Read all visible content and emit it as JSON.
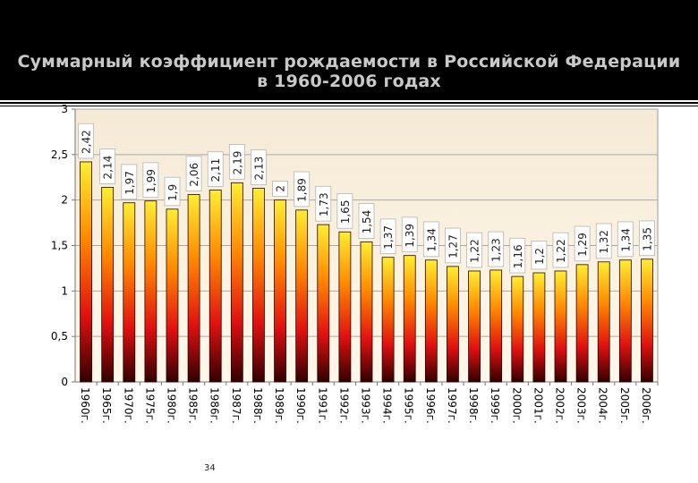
{
  "slide": {
    "title_line1": "Суммарный коэффициент рождаемости в Российской Федерации",
    "title_line2": "в 1960-2006 годах",
    "page_number": "34"
  },
  "chart_data": {
    "type": "bar",
    "title": "Суммарный коэффициент рождаемости в Российской Федерации в 1960-2006 годах",
    "categories": [
      "1960г.",
      "1965г.",
      "1970г.",
      "1975г.",
      "1980г.",
      "1985г.",
      "1986г.",
      "1987г.",
      "1988г.",
      "1989г.",
      "1990г.",
      "1991г.",
      "1992г.",
      "1993г.",
      "1994г.",
      "1995г.",
      "1996г.",
      "1997г.",
      "1998г.",
      "1999г.",
      "2000г.",
      "2001г.",
      "2002г.",
      "2003г.",
      "2004г.",
      "2005г.",
      "2006г."
    ],
    "values": [
      2.42,
      2.14,
      1.97,
      1.99,
      1.9,
      2.06,
      2.11,
      2.19,
      2.13,
      2,
      1.89,
      1.73,
      1.65,
      1.54,
      1.37,
      1.39,
      1.34,
      1.27,
      1.22,
      1.23,
      1.16,
      1.2,
      1.22,
      1.29,
      1.32,
      1.34,
      1.35
    ],
    "data_labels": [
      "2,42",
      "2,14",
      "1,97",
      "1,99",
      "1,9",
      "2,06",
      "2,11",
      "2,19",
      "2,13",
      "2",
      "1,89",
      "1,73",
      "1,65",
      "1,54",
      "1,37",
      "1,39",
      "1,34",
      "1,27",
      "1,22",
      "1,23",
      "1,16",
      "1,2",
      "1,22",
      "1,29",
      "1,32",
      "1,34",
      "1,35"
    ],
    "y_ticks": [
      0,
      0.5,
      1,
      1.5,
      2,
      2.5,
      3
    ],
    "y_tick_labels": [
      "0",
      "0,5",
      "1",
      "1,5",
      "2",
      "2,5",
      "3"
    ],
    "ylim": [
      0,
      3
    ],
    "grid": true,
    "legend": "none",
    "colors": {
      "bar_top": "#ffee33",
      "bar_mid": "#ff8800",
      "bar_low": "#e01010",
      "bar_bottom": "#300000",
      "plot_bg_top": "#f5ead6",
      "plot_bg_bottom": "#fff8ea"
    }
  }
}
